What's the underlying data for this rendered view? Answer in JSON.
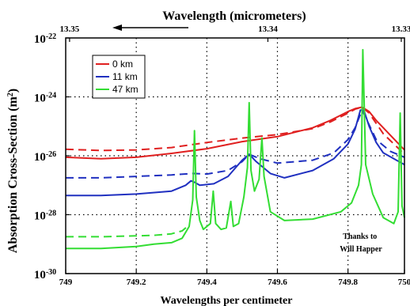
{
  "chart_data": {
    "type": "line",
    "title_top_axis": "Wavelength (micrometers)",
    "xlabel": "Wavelengths per centimeter",
    "ylabel": "Absorption Cross-Section (m",
    "ylabel_sup": "2",
    "ylabel_close": ")",
    "xlim": [
      749.0,
      749.96
    ],
    "ylim_exponent": [
      -30,
      -22
    ],
    "yscale": "log",
    "x_ticks": [
      "749",
      "749.2",
      "749.4",
      "749.6",
      "749.8",
      "750"
    ],
    "x_tick_values": [
      749.0,
      749.2,
      749.4,
      749.6,
      749.8,
      749.96
    ],
    "top_ticks": [
      {
        "label": "13.35",
        "x": 749.011
      },
      {
        "label": "13.34",
        "x": 749.573
      },
      {
        "label": "13.33",
        "x": 749.951
      }
    ],
    "y_ticks": [
      {
        "base": "10",
        "exp": "-22",
        "value": -22
      },
      {
        "base": "10",
        "exp": "-24",
        "value": -24
      },
      {
        "base": "10",
        "exp": "-26",
        "value": -26
      },
      {
        "base": "10",
        "exp": "-28",
        "value": -28
      },
      {
        "base": "10",
        "exp": "-30",
        "value": -30
      }
    ],
    "grid": "dotted",
    "legend_position": "top-left",
    "annotation": [
      "Thanks to",
      "Will Happer"
    ],
    "series": [
      {
        "name": "0 km",
        "color": "#e02020",
        "solid": {
          "x": [
            749.0,
            749.1,
            749.2,
            749.3,
            749.4,
            749.5,
            749.6,
            749.7,
            749.75,
            749.8,
            749.82,
            749.84,
            749.86,
            749.88,
            749.9,
            749.96
          ],
          "log10y": [
            -26.05,
            -26.1,
            -26.05,
            -25.92,
            -25.76,
            -25.52,
            -25.35,
            -25.05,
            -24.8,
            -24.5,
            -24.4,
            -24.35,
            -24.5,
            -24.8,
            -25.05,
            -25.8
          ]
        },
        "dashed": {
          "x": [
            749.0,
            749.1,
            749.2,
            749.3,
            749.4,
            749.5,
            749.6,
            749.7,
            749.75,
            749.8,
            749.82,
            749.84,
            749.86,
            749.88,
            749.9,
            749.96
          ],
          "log10y": [
            -25.78,
            -25.82,
            -25.8,
            -25.72,
            -25.55,
            -25.4,
            -25.28,
            -25.08,
            -24.85,
            -24.55,
            -24.42,
            -24.35,
            -24.55,
            -24.9,
            -25.25,
            -25.95
          ]
        }
      },
      {
        "name": "11 km",
        "color": "#2030c0",
        "solid": {
          "x": [
            749.0,
            749.1,
            749.2,
            749.3,
            749.34,
            749.355,
            749.365,
            749.38,
            749.42,
            749.46,
            749.5,
            749.52,
            749.54,
            749.58,
            749.62,
            749.7,
            749.76,
            749.8,
            749.82,
            749.835,
            749.845,
            749.86,
            749.88,
            749.9,
            749.96
          ],
          "log10y": [
            -27.35,
            -27.35,
            -27.3,
            -27.2,
            -27.0,
            -26.85,
            -26.9,
            -27.0,
            -26.95,
            -26.7,
            -26.15,
            -25.95,
            -26.2,
            -26.6,
            -26.75,
            -26.5,
            -26.1,
            -25.6,
            -25.1,
            -24.45,
            -24.45,
            -25.0,
            -25.55,
            -25.9,
            -26.3
          ]
        },
        "dashed": {
          "x": [
            749.0,
            749.1,
            749.2,
            749.3,
            749.36,
            749.4,
            749.46,
            749.5,
            749.52,
            749.55,
            749.6,
            749.7,
            749.76,
            749.8,
            749.82,
            749.84,
            749.86,
            749.88,
            749.92,
            749.96
          ],
          "log10y": [
            -26.75,
            -26.75,
            -26.7,
            -26.65,
            -26.6,
            -26.62,
            -26.5,
            -26.2,
            -25.95,
            -26.1,
            -26.25,
            -26.15,
            -25.9,
            -25.45,
            -25.05,
            -24.45,
            -24.95,
            -25.45,
            -25.85,
            -26.05
          ]
        }
      },
      {
        "name": "47 km",
        "color": "#33dd33",
        "solid": {
          "x": [
            749.0,
            749.1,
            749.2,
            749.25,
            749.3,
            749.33,
            749.35,
            749.36,
            749.365,
            749.37,
            749.38,
            749.39,
            749.41,
            749.418,
            749.425,
            749.44,
            749.455,
            749.468,
            749.475,
            749.49,
            749.505,
            749.515,
            749.52,
            749.525,
            749.535,
            749.548,
            749.556,
            749.562,
            749.58,
            749.62,
            749.7,
            749.78,
            749.81,
            749.83,
            749.838,
            749.842,
            749.85,
            749.87,
            749.9,
            749.93,
            749.942,
            749.948,
            749.953,
            749.96
          ],
          "log10y": [
            -29.15,
            -29.15,
            -29.08,
            -29.0,
            -28.95,
            -28.8,
            -28.4,
            -27.5,
            -25.15,
            -27.4,
            -28.2,
            -28.5,
            -28.3,
            -27.2,
            -28.3,
            -28.5,
            -28.45,
            -27.55,
            -28.4,
            -28.3,
            -27.4,
            -26.4,
            -24.2,
            -26.5,
            -27.2,
            -26.8,
            -25.4,
            -26.7,
            -27.9,
            -28.2,
            -28.15,
            -27.9,
            -27.6,
            -27.0,
            -26.3,
            -22.4,
            -26.3,
            -27.3,
            -28.1,
            -28.3,
            -27.9,
            -24.55,
            -27.7,
            -28.1
          ]
        },
        "dashed": {
          "x": [
            749.0,
            749.1,
            749.2,
            749.25,
            749.3,
            749.33,
            749.35
          ],
          "log10y": [
            -28.75,
            -28.75,
            -28.72,
            -28.7,
            -28.65,
            -28.55,
            -28.35
          ]
        }
      }
    ]
  }
}
